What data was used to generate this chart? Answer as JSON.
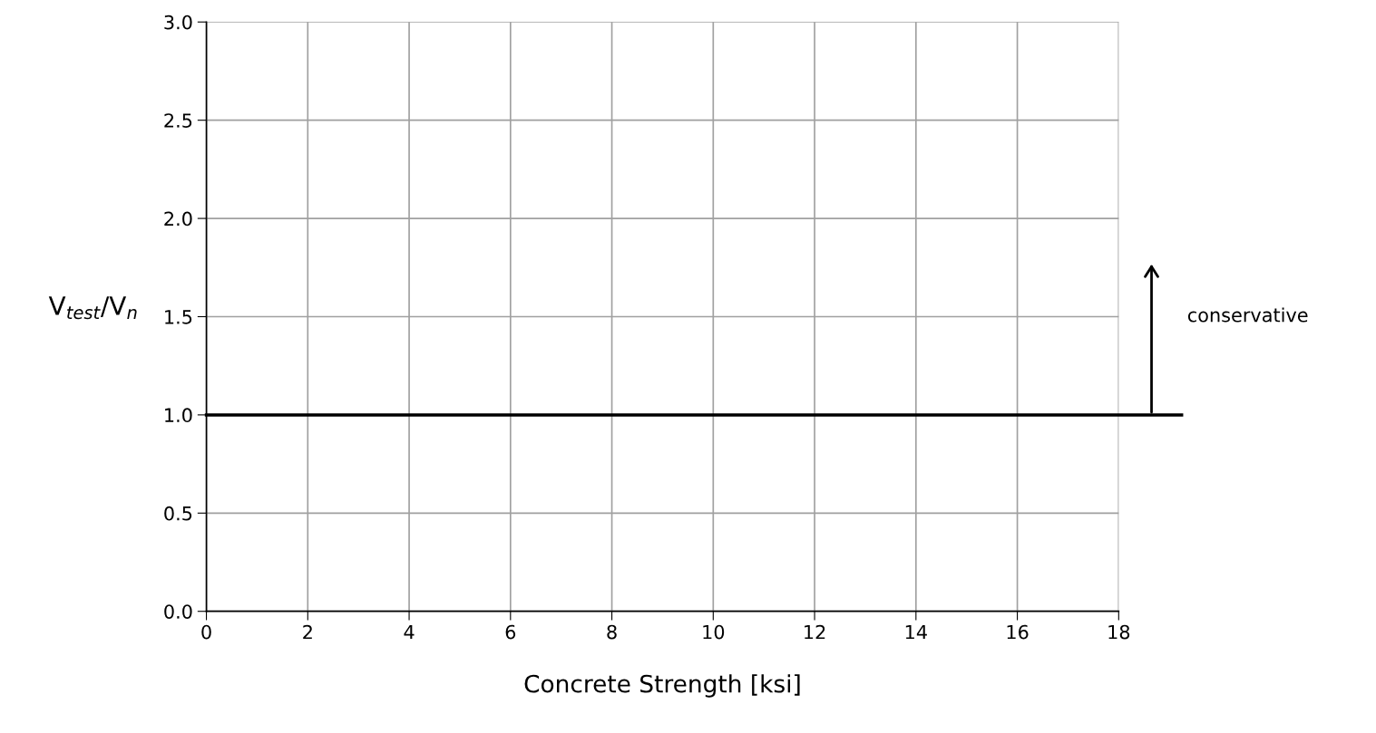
{
  "chart_data": {
    "type": "line",
    "xlabel": "Concrete Strength [ksi]",
    "ylabel": "V$_{test}$/V$_{n}$",
    "xlim": [
      0,
      18
    ],
    "xticks": [
      0,
      2,
      4,
      6,
      8,
      10,
      12,
      14,
      16,
      18
    ],
    "ylim": [
      0,
      3
    ],
    "yticks": [
      {
        "value": 0,
        "label": "0.0"
      },
      {
        "value": 0.5,
        "label": "0.5"
      },
      {
        "value": 1,
        "label": "1.0"
      },
      {
        "value": 1.5,
        "label": "1.5"
      },
      {
        "value": 2,
        "label": "2.0"
      },
      {
        "value": 2.5,
        "label": "2.5"
      },
      {
        "value": 3,
        "label": "3.0"
      }
    ],
    "ref_lines": [
      {
        "axis": "y",
        "value": 1,
        "color": "#000000",
        "line_style": "solid"
      }
    ],
    "annotations": [
      "conservative"
    ],
    "grid": true
  }
}
